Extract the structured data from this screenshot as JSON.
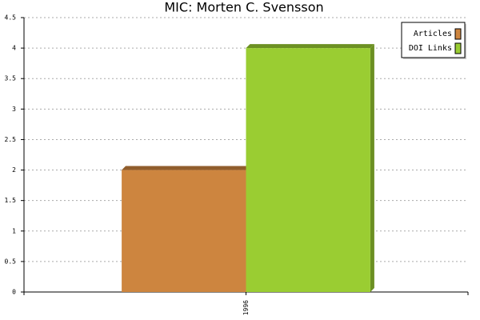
{
  "chart_data": {
    "type": "bar",
    "title": "MIC: Morten C. Svensson",
    "categories": [
      "1996"
    ],
    "series": [
      {
        "name": "Articles",
        "color": "#cd853f",
        "values": [
          2
        ]
      },
      {
        "name": "DOI Links",
        "color": "#9acd32",
        "values": [
          4
        ]
      }
    ],
    "ylim": [
      0,
      4.5
    ],
    "yticks": [
      0,
      0.5,
      1,
      1.5,
      2,
      2.5,
      3,
      3.5,
      4,
      4.5
    ],
    "grid": true,
    "legend": "top-right"
  }
}
